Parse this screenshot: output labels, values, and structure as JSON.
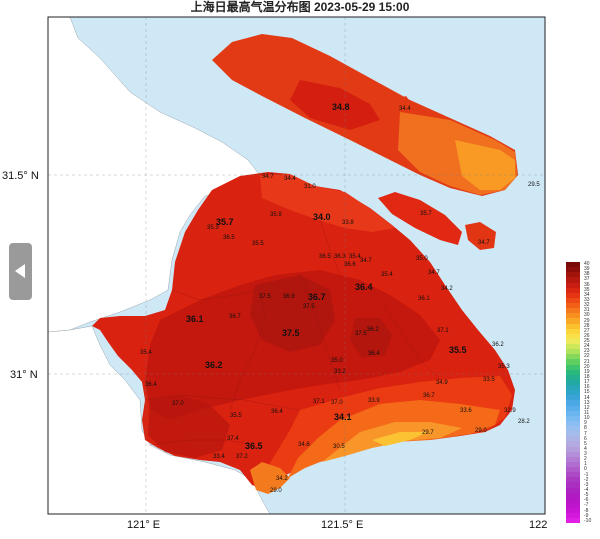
{
  "title": "上海日最高气温分布图 2023-05-29 15:00",
  "axes": {
    "lat_labels": [
      "31.5° N",
      "31° N"
    ],
    "lon_labels": [
      "121° E",
      "121.5° E",
      "122"
    ]
  },
  "colors": {
    "sea": "#cfe8f5",
    "land_outside": "#ffffff",
    "temp_36_37": "#c4180e",
    "temp_35_36": "#d9220f",
    "temp_34_35": "#ea3b12",
    "temp_33_34": "#f45a16",
    "temp_32_33": "#f7821e",
    "temp_30_32": "#f9a226",
    "temp_29_30": "#fbc233",
    "hotspot": "#9e1a12"
  },
  "station_values": [
    {
      "label": "34.8",
      "big": true
    },
    {
      "label": "34.4",
      "big": false
    },
    {
      "label": "29.5",
      "big": false
    },
    {
      "label": "35.7",
      "big": false
    },
    {
      "label": "34.7",
      "big": false
    },
    {
      "label": "34.7",
      "big": false
    },
    {
      "label": "34.4",
      "big": false
    },
    {
      "label": "31.0",
      "big": false
    },
    {
      "label": "35.7",
      "big": true
    },
    {
      "label": "35.9",
      "big": false
    },
    {
      "label": "34.0",
      "big": true
    },
    {
      "label": "33.8",
      "big": false
    },
    {
      "label": "35.3",
      "big": false
    },
    {
      "label": "36.5",
      "big": false
    },
    {
      "label": "35.5",
      "big": false
    },
    {
      "label": "36.5",
      "big": false
    },
    {
      "label": "36.3",
      "big": false
    },
    {
      "label": "36.6",
      "big": false
    },
    {
      "label": "35.4",
      "big": false
    },
    {
      "label": "34.7",
      "big": false
    },
    {
      "label": "35.0",
      "big": false
    },
    {
      "label": "34.7",
      "big": false
    },
    {
      "label": "35.4",
      "big": false
    },
    {
      "label": "34.2",
      "big": false
    },
    {
      "label": "37.5",
      "big": false
    },
    {
      "label": "36.9",
      "big": false
    },
    {
      "label": "36.7",
      "big": true
    },
    {
      "label": "36.4",
      "big": true
    },
    {
      "label": "36.1",
      "big": false
    },
    {
      "label": "36.1",
      "big": true
    },
    {
      "label": "36.7",
      "big": false
    },
    {
      "label": "37.5",
      "big": false
    },
    {
      "label": "37.5",
      "big": false
    },
    {
      "label": "37.5",
      "big": true
    },
    {
      "label": "36.2",
      "big": false
    },
    {
      "label": "37.1",
      "big": false
    },
    {
      "label": "36.2",
      "big": false
    },
    {
      "label": "35.4",
      "big": false
    },
    {
      "label": "36.2",
      "big": true
    },
    {
      "label": "35.0",
      "big": false
    },
    {
      "label": "36.4",
      "big": false
    },
    {
      "label": "35.5",
      "big": true
    },
    {
      "label": "35.3",
      "big": false
    },
    {
      "label": "36.4",
      "big": false
    },
    {
      "label": "33.2",
      "big": false
    },
    {
      "label": "34.9",
      "big": false
    },
    {
      "label": "33.5",
      "big": false
    },
    {
      "label": "36.7",
      "big": false
    },
    {
      "label": "37.0",
      "big": false
    },
    {
      "label": "37.1",
      "big": false
    },
    {
      "label": "37.0",
      "big": false
    },
    {
      "label": "33.9",
      "big": false
    },
    {
      "label": "35.5",
      "big": false
    },
    {
      "label": "36.4",
      "big": false
    },
    {
      "label": "34.1",
      "big": true
    },
    {
      "label": "33.6",
      "big": false
    },
    {
      "label": "32.9",
      "big": false
    },
    {
      "label": "37.4",
      "big": false
    },
    {
      "label": "36.5",
      "big": true
    },
    {
      "label": "34.6",
      "big": false
    },
    {
      "label": "30.5",
      "big": false
    },
    {
      "label": "29.7",
      "big": false
    },
    {
      "label": "29.0",
      "big": false
    },
    {
      "label": "28.2",
      "big": false
    },
    {
      "label": "33.4",
      "big": false
    },
    {
      "label": "37.2",
      "big": false
    },
    {
      "label": "34.2",
      "big": false
    },
    {
      "label": "29.0",
      "big": false
    }
  ],
  "legend": {
    "labels": [
      "40",
      "39",
      "38",
      "37",
      "36",
      "35",
      "34",
      "33",
      "32",
      "31",
      "30",
      "29",
      "28",
      "27",
      "26",
      "25",
      "24",
      "23",
      "22",
      "21",
      "20",
      "19",
      "18",
      "17",
      "16",
      "15",
      "14",
      "13",
      "12",
      "11",
      "10",
      "9",
      "8",
      "7",
      "6",
      "5",
      "4",
      "3",
      "2",
      "1",
      "0",
      "-1",
      "-2",
      "-3",
      "-4",
      "-5",
      "-6",
      "-7",
      "-8",
      "-9",
      "-10"
    ],
    "colors": [
      "#7a0a08",
      "#8c0e0a",
      "#a0140c",
      "#b5180e",
      "#c81d10",
      "#d92612",
      "#e63514",
      "#ee4a16",
      "#f26018",
      "#f5781c",
      "#f89020",
      "#f9a826",
      "#fbc02e",
      "#fcd53a",
      "#f8e14a",
      "#eaea5a",
      "#cfe85a",
      "#aee25a",
      "#86d85a",
      "#5ecf60",
      "#3ec46c",
      "#2ab97c",
      "#22b08e",
      "#22aaa2",
      "#26a6b6",
      "#2ea4c8",
      "#3aa4d8",
      "#4aa8e4",
      "#5aaeec",
      "#6ab4f0",
      "#7abaf2",
      "#8abef2",
      "#98bff0",
      "#a4bcec",
      "#acb4e6",
      "#b2aae0",
      "#b49edc",
      "#b48ed8",
      "#b27ed4",
      "#b06ccf",
      "#ae5aca",
      "#ac4ac6",
      "#aa3ac2",
      "#aa2ec0",
      "#ac24c0",
      "#b01cc2",
      "#b616c6",
      "#be14cc",
      "#c814d4",
      "#d418dc",
      "#e020e4"
    ]
  }
}
